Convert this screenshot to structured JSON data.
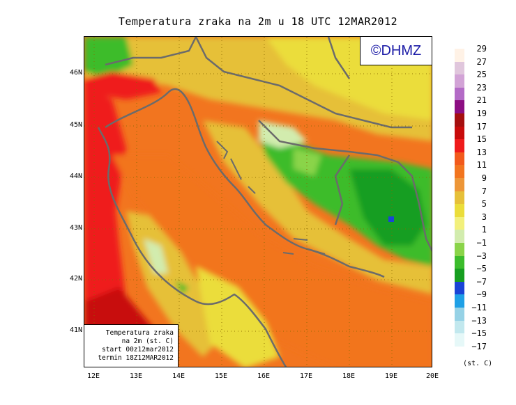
{
  "title": "Temperatura zraka na 2m u 18 UTC 12MAR2012",
  "copyright": "©DHMZ",
  "info_box": {
    "line1": "Temperatura zraka",
    "line2": "na 2m (st. C)",
    "line3": "start 00z12mar2012",
    "line4": "termin 18Z12MAR2012"
  },
  "latitude_labels": [
    "46N",
    "45N",
    "44N",
    "43N",
    "42N",
    "41N"
  ],
  "longitude_labels": [
    "12E",
    "13E",
    "14E",
    "15E",
    "16E",
    "17E",
    "18E",
    "19E",
    "20E"
  ],
  "legend": {
    "unit": "(st. C)",
    "levels": [
      "29",
      "27",
      "25",
      "23",
      "21",
      "19",
      "17",
      "15",
      "13",
      "11",
      "9",
      "7",
      "5",
      "3",
      "1",
      "−1",
      "−3",
      "−5",
      "−7",
      "−9",
      "−11",
      "−13",
      "−15",
      "−17"
    ],
    "colors": [
      "#fff2e6",
      "#e0c6dc",
      "#d2a3d6",
      "#b36bc6",
      "#8c0e82",
      "#a50f0f",
      "#c80b0b",
      "#ef1b1b",
      "#f25a1c",
      "#f2751f",
      "#ed9638",
      "#e6c039",
      "#ebdd3a",
      "#f2f07c",
      "#d2ecae",
      "#8ad449",
      "#3cbc2c",
      "#179e20",
      "#1a44d6",
      "#1ea0e6",
      "#96d2e6",
      "#c2e8ee",
      "#e6f8f8"
    ]
  }
}
